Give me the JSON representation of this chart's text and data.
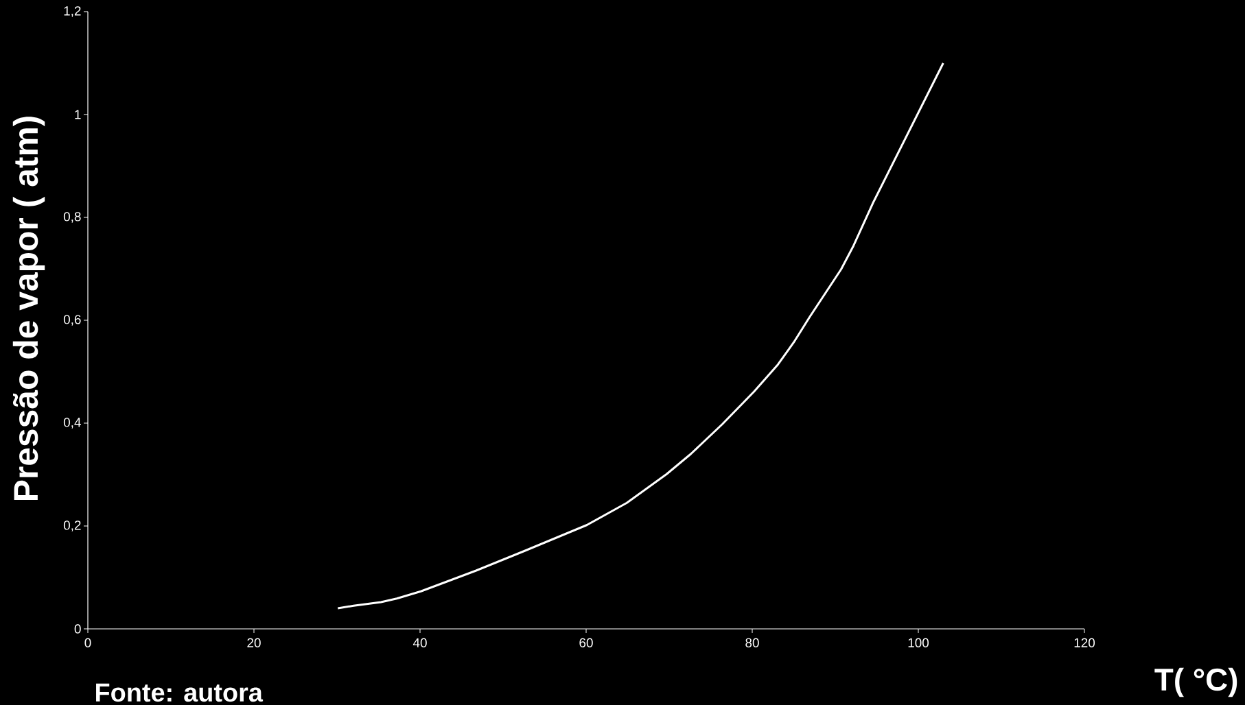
{
  "chart_data": {
    "type": "line",
    "xlabel": "T( °C)",
    "ylabel": "Pressão de vapor ( atm)",
    "annotations": [
      "Fonte: autora"
    ],
    "series": [
      {
        "color": "#ffffff",
        "x": [
          30.1,
          32,
          35.3,
          37.2,
          40.1,
          46.7,
          52.5,
          60.1,
          64.9,
          69.7,
          72.6,
          76.4,
          80.2,
          83.1,
          85,
          86.9,
          90.7,
          92.2,
          94.6,
          103
        ],
        "values": [
          0.04,
          0.045,
          0.052,
          0.059,
          0.073,
          0.113,
          0.151,
          0.202,
          0.245,
          0.301,
          0.34,
          0.398,
          0.461,
          0.514,
          0.557,
          0.606,
          0.699,
          0.745,
          0.83,
          1.1
        ]
      }
    ],
    "xlim": [
      0,
      120
    ],
    "ylim": [
      0,
      1.2
    ],
    "xticks": [
      0,
      20,
      40,
      60,
      80,
      100,
      120
    ],
    "yticks": [
      0,
      {
        "value": 0.2,
        "label": "0,2"
      },
      {
        "value": 0.4,
        "label": "0,4"
      },
      {
        "value": 0.6,
        "label": "0,6"
      },
      {
        "value": 0.8,
        "label": "0,8"
      },
      1,
      {
        "value": 1.2,
        "label": "1,2"
      }
    ],
    "grid": false,
    "marker": "none",
    "line_style": "solid"
  }
}
